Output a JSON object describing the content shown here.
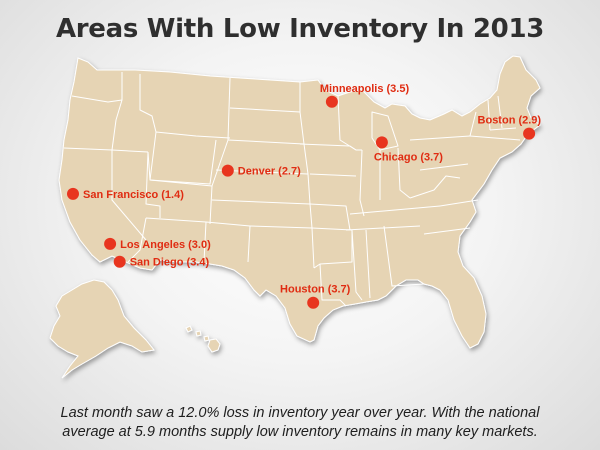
{
  "title": "Areas With Low Inventory In 2013",
  "colors": {
    "land": "#e6d4b4",
    "border": "#ffffff",
    "marker": "#e8351f",
    "label": "#e02c12"
  },
  "cities": [
    {
      "name": "Minneapolis (3.5)",
      "lon": -93.27,
      "lat": 44.98,
      "label_side": "above-right"
    },
    {
      "name": "Boston (2.9)",
      "lon": -71.06,
      "lat": 42.36,
      "label_side": "above-left"
    },
    {
      "name": "Chicago (3.7)",
      "lon": -87.63,
      "lat": 41.88,
      "label_side": "below-right"
    },
    {
      "name": "San Francisco (1.4)",
      "lon": -122.42,
      "lat": 37.77,
      "label_side": "right"
    },
    {
      "name": "Denver (2.7)",
      "lon": -104.99,
      "lat": 39.74,
      "label_side": "right"
    },
    {
      "name": "Los Angeles (3.0)",
      "lon": -118.24,
      "lat": 34.05,
      "label_side": "right"
    },
    {
      "name": "San Diego (3.4)",
      "lon": -117.16,
      "lat": 32.72,
      "label_side": "right"
    },
    {
      "name": "Houston (3.7)",
      "lon": -95.37,
      "lat": 29.76,
      "label_side": "above"
    }
  ],
  "caption": {
    "line1": "Last month saw a 12.0% loss in inventory year over year. With the national",
    "line2": "average at 5.9 months supply low inventory remains in many key markets."
  }
}
